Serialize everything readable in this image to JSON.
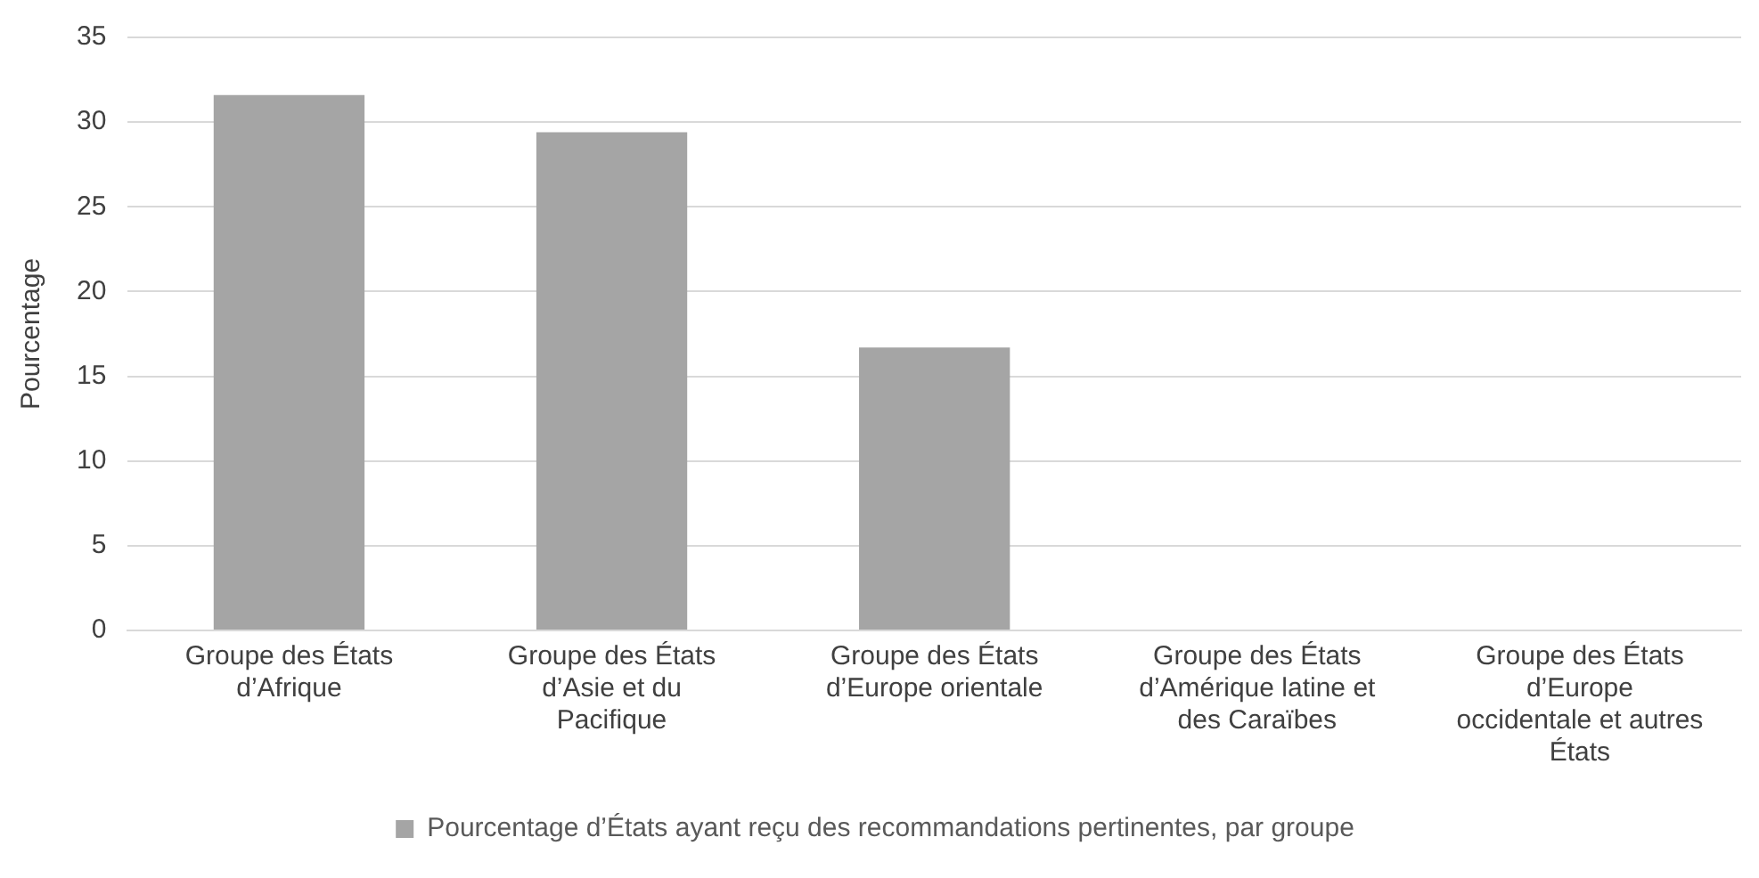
{
  "chart_data": {
    "type": "bar",
    "ylabel": "Pourcentage",
    "categories": [
      "Groupe des États d’Afrique",
      "Groupe des États d’Asie et du Pacifique",
      "Groupe des États d’Europe orientale",
      "Groupe des États d’Amérique latine et des Caraïbes",
      "Groupe des États d’Europe occidentale et autres États"
    ],
    "series": [
      {
        "name": "Pourcentage d’États ayant reçu des recommandations pertinentes, par groupe",
        "color": "#a5a5a5",
        "values": [
          31.6,
          29.4,
          16.7,
          0,
          0
        ]
      }
    ],
    "ylim": [
      0,
      35
    ],
    "yticks": [
      0,
      5,
      10,
      15,
      20,
      25,
      30,
      35
    ],
    "grid": "y",
    "legend": "bottom"
  }
}
